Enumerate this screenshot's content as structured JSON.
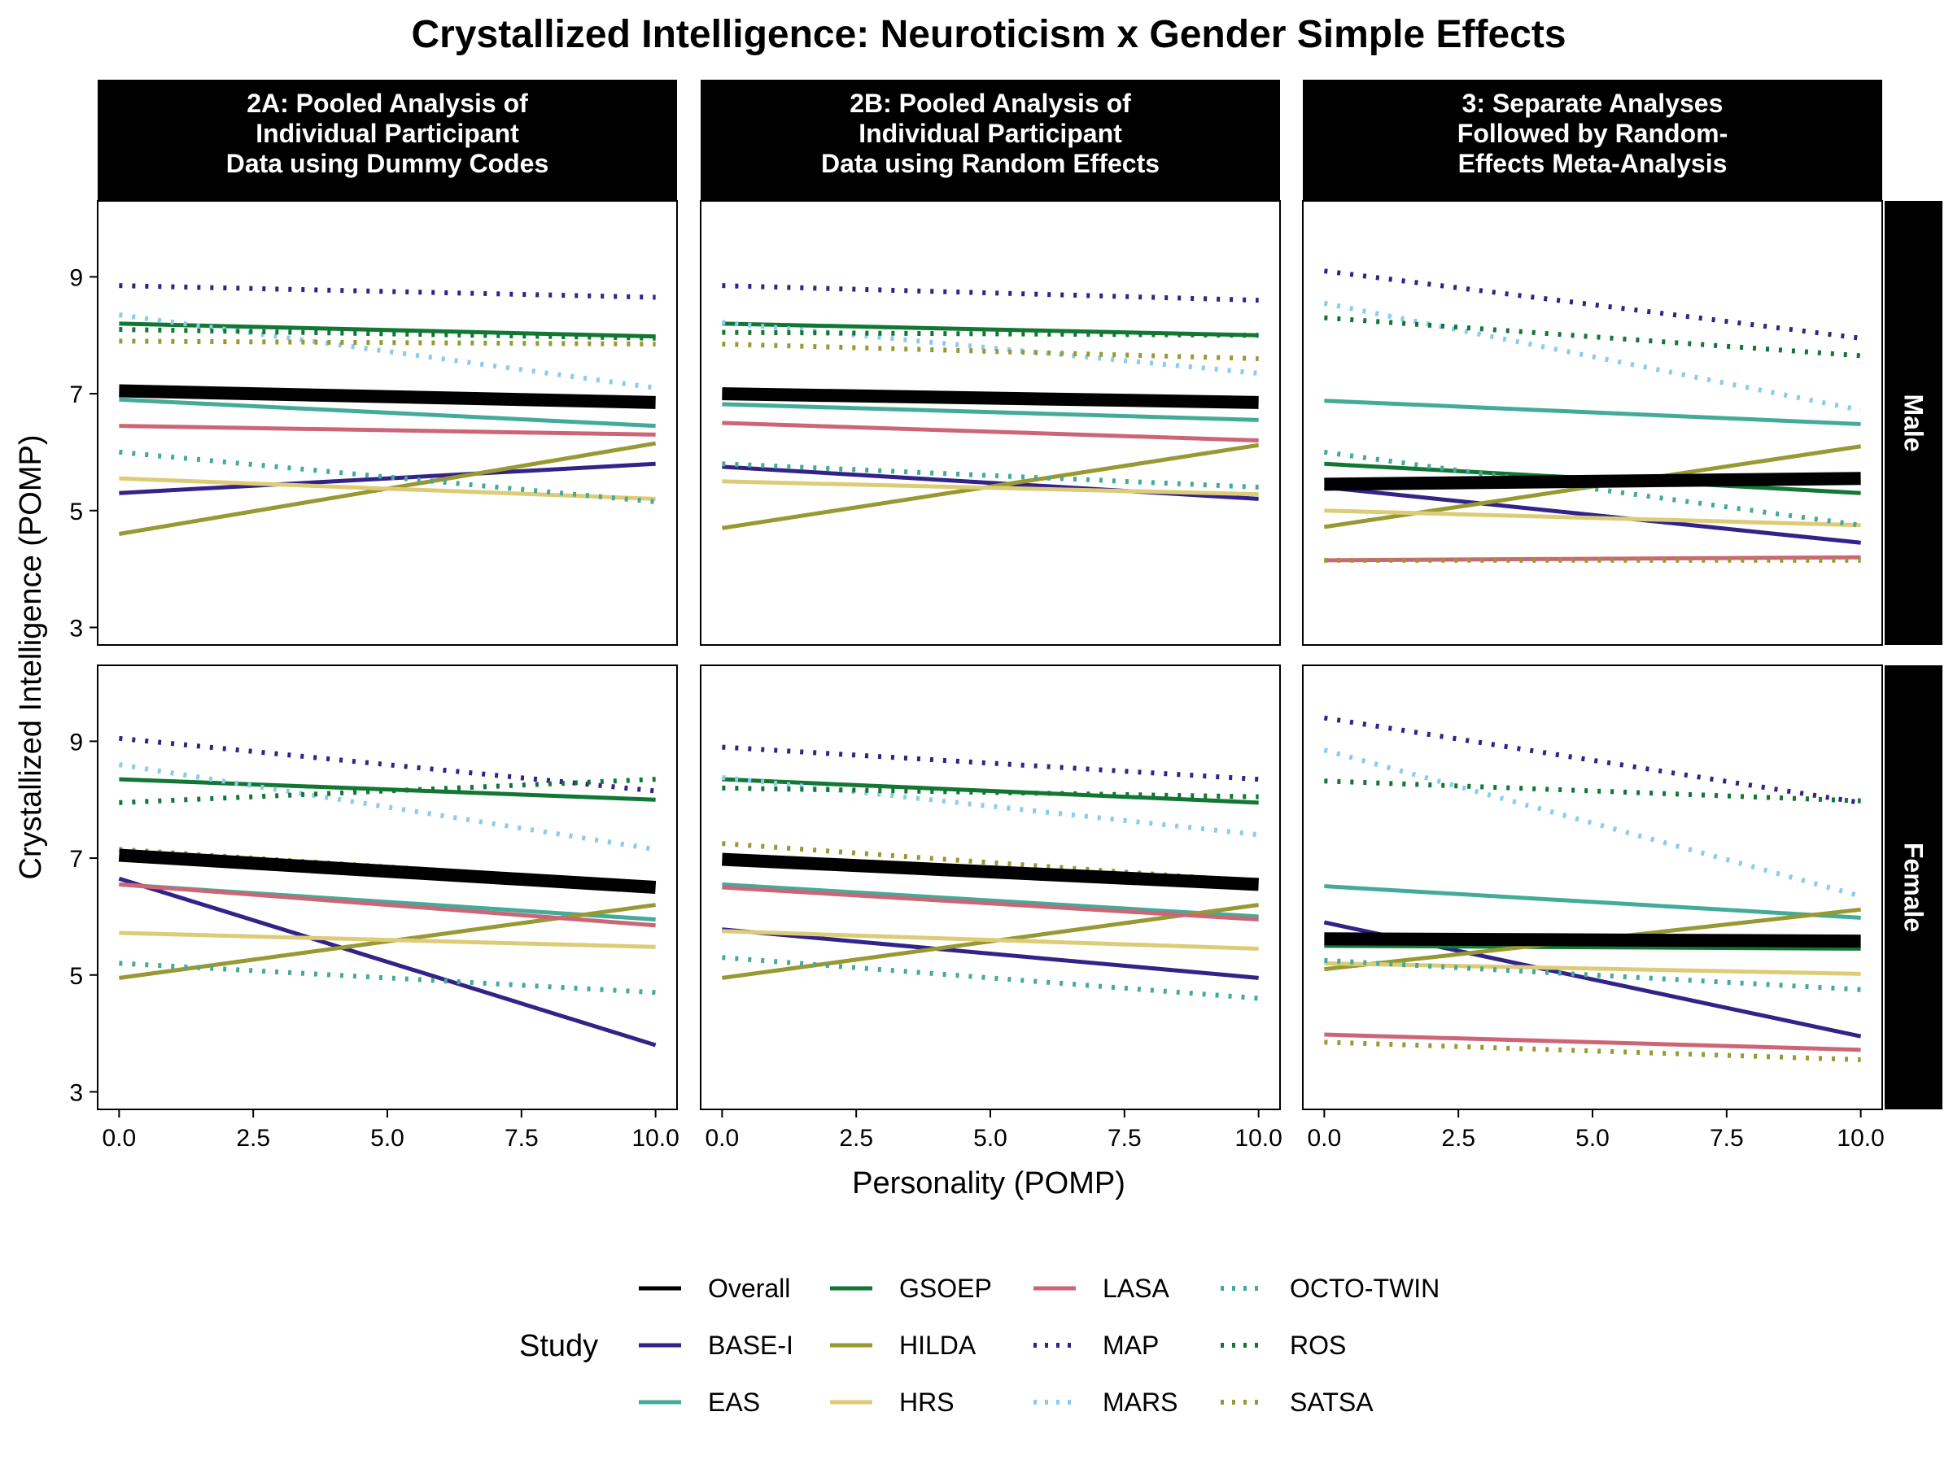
{
  "chart_data": {
    "type": "line",
    "title": "Crystallized Intelligence: Neuroticism x Gender Simple Effects",
    "xlabel": "Personality (POMP)",
    "ylabel": "Crystallized Intelligence (POMP)",
    "xlim": [
      -0.4,
      10.4
    ],
    "ylim": [
      2.7,
      10.3
    ],
    "x_ticks": [
      0,
      2.5,
      5,
      7.5,
      10
    ],
    "x_tick_labels": [
      "0.0",
      "2.5",
      "5.0",
      "7.5",
      "10.0"
    ],
    "y_ticks": [
      3,
      5,
      7,
      9
    ],
    "y_tick_labels": [
      "3",
      "5",
      "7",
      "9"
    ],
    "columns": [
      "2A: Pooled Analysis of\nIndividual Participant\nData using Dummy Codes",
      "2B: Pooled Analysis of\nIndividual Participant\nData using Random Effects",
      "3: Separate Analyses\nFollowed by Random-\nEffects Meta-Analysis"
    ],
    "rows": [
      "Male",
      "Female"
    ],
    "legend_title": "Study",
    "studies": [
      {
        "name": "Overall",
        "color": "#000000",
        "dash": "solid"
      },
      {
        "name": "BASE-I",
        "color": "#332288",
        "dash": "solid"
      },
      {
        "name": "EAS",
        "color": "#44AA99",
        "dash": "solid"
      },
      {
        "name": "GSOEP",
        "color": "#117733",
        "dash": "solid"
      },
      {
        "name": "HILDA",
        "color": "#999933",
        "dash": "solid"
      },
      {
        "name": "HRS",
        "color": "#DDCC77",
        "dash": "solid"
      },
      {
        "name": "LASA",
        "color": "#CC6677",
        "dash": "solid"
      },
      {
        "name": "MAP",
        "color": "#332288",
        "dash": "dotted"
      },
      {
        "name": "MARS",
        "color": "#88CCEE",
        "dash": "dotted"
      },
      {
        "name": "OCTO-TWIN",
        "color": "#44AA99",
        "dash": "dotted"
      },
      {
        "name": "ROS",
        "color": "#117733",
        "dash": "dotted"
      },
      {
        "name": "SATSA",
        "color": "#999933",
        "dash": "dotted"
      }
    ],
    "series": [
      {
        "column": 0,
        "row": 0,
        "lines": [
          {
            "study": "Overall",
            "y": [
              7.05,
              6.85
            ]
          },
          {
            "study": "BASE-I",
            "y": [
              5.3,
              5.8
            ]
          },
          {
            "study": "EAS",
            "y": [
              6.9,
              6.45
            ]
          },
          {
            "study": "GSOEP",
            "y": [
              8.2,
              7.98
            ]
          },
          {
            "study": "HILDA",
            "y": [
              4.6,
              6.15
            ]
          },
          {
            "study": "HRS",
            "y": [
              5.55,
              5.2
            ]
          },
          {
            "study": "LASA",
            "y": [
              6.45,
              6.3
            ]
          },
          {
            "study": "MAP",
            "y": [
              8.85,
              8.65
            ]
          },
          {
            "study": "MARS",
            "y": [
              8.35,
              7.1
            ]
          },
          {
            "study": "OCTO-TWIN",
            "y": [
              6.0,
              5.15
            ]
          },
          {
            "study": "ROS",
            "y": [
              8.1,
              7.95
            ]
          },
          {
            "study": "SATSA",
            "y": [
              7.9,
              7.85
            ]
          }
        ]
      },
      {
        "column": 1,
        "row": 0,
        "lines": [
          {
            "study": "Overall",
            "y": [
              7.0,
              6.85
            ]
          },
          {
            "study": "BASE-I",
            "y": [
              5.75,
              5.2
            ]
          },
          {
            "study": "EAS",
            "y": [
              6.82,
              6.55
            ]
          },
          {
            "study": "GSOEP",
            "y": [
              8.2,
              8.0
            ]
          },
          {
            "study": "HILDA",
            "y": [
              4.7,
              6.12
            ]
          },
          {
            "study": "HRS",
            "y": [
              5.5,
              5.28
            ]
          },
          {
            "study": "LASA",
            "y": [
              6.5,
              6.2
            ]
          },
          {
            "study": "MAP",
            "y": [
              8.85,
              8.6
            ]
          },
          {
            "study": "MARS",
            "y": [
              8.22,
              7.35
            ]
          },
          {
            "study": "OCTO-TWIN",
            "y": [
              5.8,
              5.4
            ]
          },
          {
            "study": "ROS",
            "y": [
              8.05,
              8.0
            ]
          },
          {
            "study": "SATSA",
            "y": [
              7.85,
              7.6
            ]
          }
        ]
      },
      {
        "column": 2,
        "row": 0,
        "lines": [
          {
            "study": "Overall",
            "y": [
              5.45,
              5.55
            ]
          },
          {
            "study": "BASE-I",
            "y": [
              5.4,
              4.45
            ]
          },
          {
            "study": "EAS",
            "y": [
              6.88,
              6.48
            ]
          },
          {
            "study": "GSOEP",
            "y": [
              5.8,
              5.3
            ]
          },
          {
            "study": "HILDA",
            "y": [
              4.72,
              6.1
            ]
          },
          {
            "study": "HRS",
            "y": [
              5.0,
              4.75
            ]
          },
          {
            "study": "LASA",
            "y": [
              4.15,
              4.2
            ]
          },
          {
            "study": "MAP",
            "y": [
              9.1,
              7.95
            ]
          },
          {
            "study": "MARS",
            "y": [
              8.55,
              6.72
            ]
          },
          {
            "study": "OCTO-TWIN",
            "y": [
              6.0,
              4.75
            ]
          },
          {
            "study": "ROS",
            "y": [
              8.3,
              7.65
            ]
          },
          {
            "study": "SATSA",
            "y": [
              4.15,
              4.15
            ]
          }
        ]
      },
      {
        "column": 0,
        "row": 1,
        "lines": [
          {
            "study": "Overall",
            "y": [
              7.05,
              6.5
            ]
          },
          {
            "study": "BASE-I",
            "y": [
              6.65,
              3.8
            ]
          },
          {
            "study": "EAS",
            "y": [
              6.55,
              5.95
            ]
          },
          {
            "study": "GSOEP",
            "y": [
              8.35,
              8.0
            ]
          },
          {
            "study": "HILDA",
            "y": [
              4.95,
              6.2
            ]
          },
          {
            "study": "HRS",
            "y": [
              5.72,
              5.48
            ]
          },
          {
            "study": "LASA",
            "y": [
              6.55,
              5.85
            ]
          },
          {
            "study": "MAP",
            "y": [
              9.05,
              8.15
            ]
          },
          {
            "study": "MARS",
            "y": [
              8.6,
              7.15
            ]
          },
          {
            "study": "OCTO-TWIN",
            "y": [
              5.2,
              4.7
            ]
          },
          {
            "study": "ROS",
            "y": [
              7.95,
              8.35
            ]
          },
          {
            "study": "SATSA",
            "y": [
              7.15,
              6.55
            ]
          }
        ]
      },
      {
        "column": 1,
        "row": 1,
        "lines": [
          {
            "study": "Overall",
            "y": [
              6.98,
              6.55
            ]
          },
          {
            "study": "BASE-I",
            "y": [
              5.78,
              4.95
            ]
          },
          {
            "study": "EAS",
            "y": [
              6.55,
              6.0
            ]
          },
          {
            "study": "GSOEP",
            "y": [
              8.35,
              7.95
            ]
          },
          {
            "study": "HILDA",
            "y": [
              4.95,
              6.2
            ]
          },
          {
            "study": "HRS",
            "y": [
              5.75,
              5.45
            ]
          },
          {
            "study": "LASA",
            "y": [
              6.5,
              5.95
            ]
          },
          {
            "study": "MAP",
            "y": [
              8.9,
              8.35
            ]
          },
          {
            "study": "MARS",
            "y": [
              8.38,
              7.4
            ]
          },
          {
            "study": "OCTO-TWIN",
            "y": [
              5.3,
              4.6
            ]
          },
          {
            "study": "ROS",
            "y": [
              8.2,
              8.05
            ]
          },
          {
            "study": "SATSA",
            "y": [
              7.25,
              6.6
            ]
          }
        ]
      },
      {
        "column": 2,
        "row": 1,
        "lines": [
          {
            "study": "Overall",
            "y": [
              5.62,
              5.58
            ]
          },
          {
            "study": "BASE-I",
            "y": [
              5.9,
              3.95
            ]
          },
          {
            "study": "EAS",
            "y": [
              6.52,
              5.98
            ]
          },
          {
            "study": "GSOEP",
            "y": [
              5.5,
              5.45
            ]
          },
          {
            "study": "HILDA",
            "y": [
              5.1,
              6.12
            ]
          },
          {
            "study": "HRS",
            "y": [
              5.2,
              5.02
            ]
          },
          {
            "study": "LASA",
            "y": [
              3.98,
              3.72
            ]
          },
          {
            "study": "MAP",
            "y": [
              9.4,
              7.95
            ]
          },
          {
            "study": "MARS",
            "y": [
              8.85,
              6.35
            ]
          },
          {
            "study": "OCTO-TWIN",
            "y": [
              5.25,
              4.75
            ]
          },
          {
            "study": "ROS",
            "y": [
              8.32,
              7.98
            ]
          },
          {
            "study": "SATSA",
            "y": [
              3.85,
              3.55
            ]
          }
        ]
      }
    ]
  }
}
